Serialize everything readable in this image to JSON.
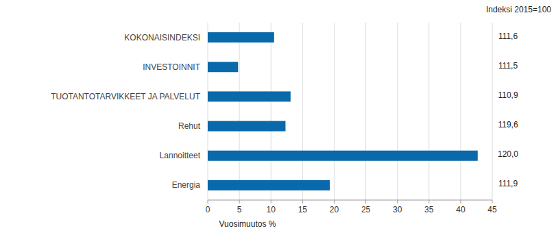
{
  "chart_data": {
    "type": "bar",
    "orientation": "horizontal",
    "categories": [
      "KOKONAISINDEKSI",
      "INVESTOINNIT",
      "TUOTANTOTARVIKKEET JA PALVELUT",
      "Rehut",
      "Lannoitteet",
      "Energia"
    ],
    "values": [
      10.5,
      4.8,
      13.1,
      12.3,
      42.7,
      19.3
    ],
    "color": "#0a69ab",
    "x_label": "Vuosimuutos %",
    "xlim": [
      0,
      45
    ],
    "xticks": [
      0,
      5,
      10,
      15,
      20,
      25,
      30,
      35,
      40,
      45
    ],
    "grid": true,
    "index_header": "Indeksi 2015=100",
    "index_labels": [
      "111,6",
      "111,5",
      "110,9",
      "119,6",
      "120,0",
      "111,9"
    ]
  }
}
